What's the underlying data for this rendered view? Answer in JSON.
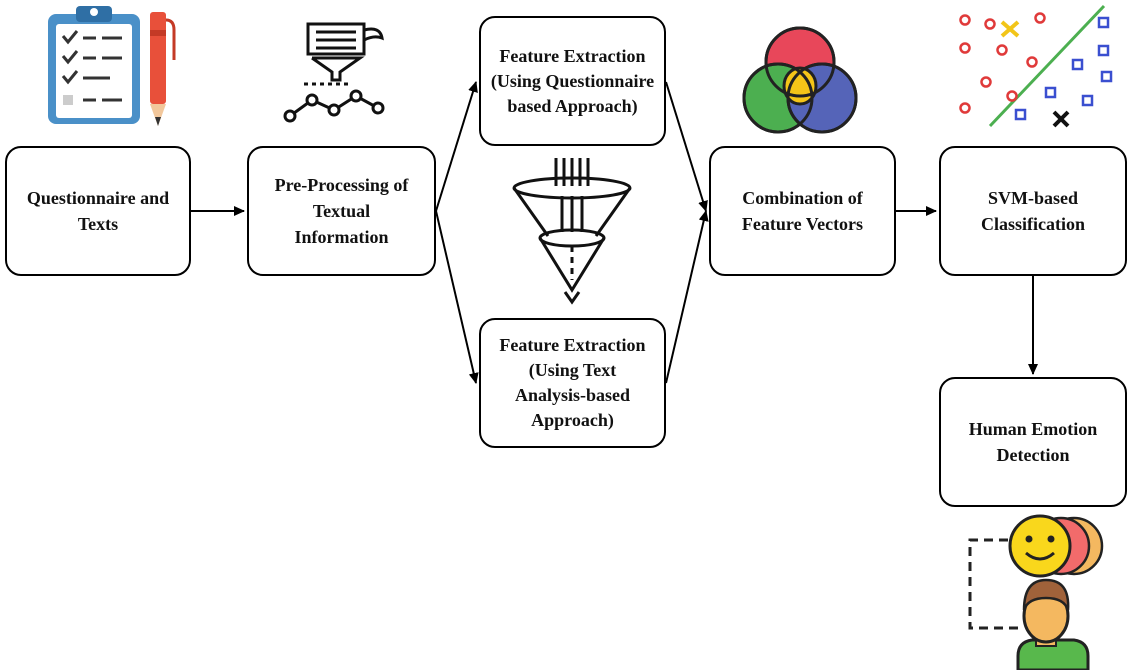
{
  "boxes": {
    "questionnaire": {
      "lines": [
        "Questionnaire and",
        "Texts"
      ]
    },
    "preprocessing": {
      "lines": [
        "Pre-Processing of",
        "Textual",
        "Information"
      ]
    },
    "feature_questionnaire": {
      "lines": [
        "Feature Extraction",
        "(Using Questionnaire",
        "based Approach)"
      ]
    },
    "feature_text": {
      "lines": [
        "Feature Extraction",
        "(Using Text",
        "Analysis-based",
        "Approach)"
      ]
    },
    "combination": {
      "lines": [
        "Combination of",
        "Feature Vectors"
      ]
    },
    "svm": {
      "lines": [
        "SVM-based",
        "Classification"
      ]
    },
    "emotion": {
      "lines": [
        "Human Emotion",
        "Detection"
      ]
    }
  },
  "icons": [
    "clipboard-checklist-icon",
    "data-filter-icon",
    "funnel-icon",
    "venn-diagram-icon",
    "svm-scatter-icon",
    "emotion-person-icon"
  ],
  "colors": {
    "stroke": "#000000",
    "clipboard": "#4a90c8",
    "pen": "#e8503a",
    "venn_red": "#e8475a",
    "venn_green": "#4caf50",
    "venn_blue": "#5564b8",
    "venn_yellow": "#f5c518",
    "svm_line": "#4caf50",
    "svm_circle": "#e03a3a",
    "svm_square": "#3a4fd0",
    "smiley": "#f9d71c",
    "person_skin": "#f4b860",
    "person_shirt": "#58b84c"
  }
}
